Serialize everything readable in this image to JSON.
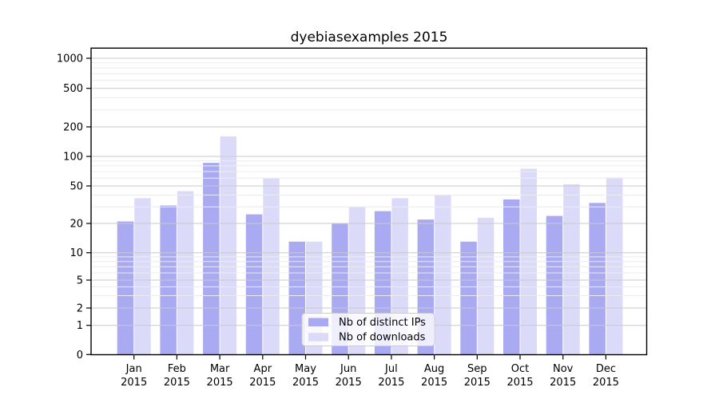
{
  "title": "dyebiasexamples 2015",
  "colors": {
    "background": "#ffffff",
    "bar_ips": "#aaaaf2",
    "bar_downloads": "#dbdbf9",
    "grid_major": "#c9c9c9",
    "grid_minor": "#ececec",
    "axis": "#000000",
    "legend_border": "#cccccc",
    "legend_bg": "rgba(255,255,255,0.8)"
  },
  "chart_data": {
    "type": "bar",
    "title": "dyebiasexamples 2015",
    "xlabel": "",
    "ylabel": "",
    "yscale": "symlog",
    "ylim": [
      0,
      1000
    ],
    "grid": true,
    "legend_position": "lower-center",
    "yticks": [
      0,
      1,
      2,
      5,
      10,
      20,
      50,
      100,
      200,
      500,
      1000
    ],
    "minor_ticks": [
      3,
      4,
      6,
      7,
      8,
      9,
      30,
      40,
      60,
      70,
      80,
      90,
      300,
      400,
      600,
      700,
      800,
      900
    ],
    "categories": [
      "Jan 2015",
      "Feb 2015",
      "Mar 2015",
      "Apr 2015",
      "May 2015",
      "Jun 2015",
      "Jul 2015",
      "Aug 2015",
      "Sep 2015",
      "Oct 2015",
      "Nov 2015",
      "Dec 2015"
    ],
    "series": [
      {
        "name": "Nb of distinct IPs",
        "color": "#aaaaf2",
        "values": [
          21,
          31,
          86,
          25,
          13,
          20,
          27,
          22,
          13,
          36,
          24,
          33
        ]
      },
      {
        "name": "Nb of downloads",
        "color": "#dbdbf9",
        "values": [
          37,
          44,
          160,
          60,
          13,
          30,
          37,
          40,
          23,
          75,
          52,
          61
        ]
      }
    ]
  }
}
